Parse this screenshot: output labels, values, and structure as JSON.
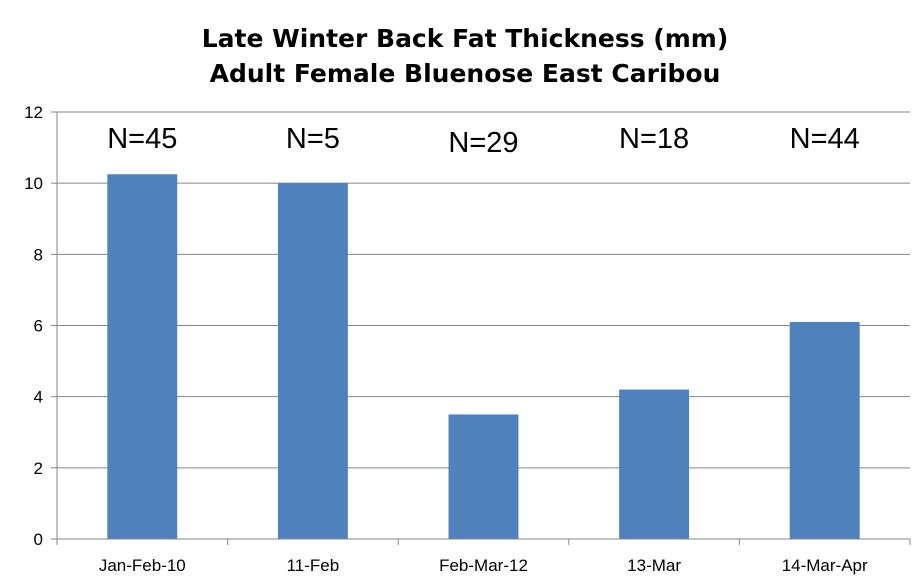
{
  "chart_data": {
    "type": "bar",
    "title": "Late Winter Back Fat Thickness (mm)",
    "subtitle": "Adult Female Bluenose East Caribou",
    "categories": [
      "Jan-Feb-10",
      "11-Feb",
      "Feb-Mar-12",
      "13-Mar",
      "14-Mar-Apr"
    ],
    "values": [
      10.25,
      10.0,
      3.5,
      4.2,
      6.1
    ],
    "annotations": [
      "N=45",
      "N=5",
      "N=29",
      "N=18",
      "N=44"
    ],
    "ylim": [
      0,
      12
    ],
    "yticks": [
      0,
      2,
      4,
      6,
      8,
      10,
      12
    ],
    "grid": true,
    "legend": "none",
    "colors": {
      "bar": "#4F81BD",
      "grid": "#868686",
      "axis": "#868686"
    }
  }
}
